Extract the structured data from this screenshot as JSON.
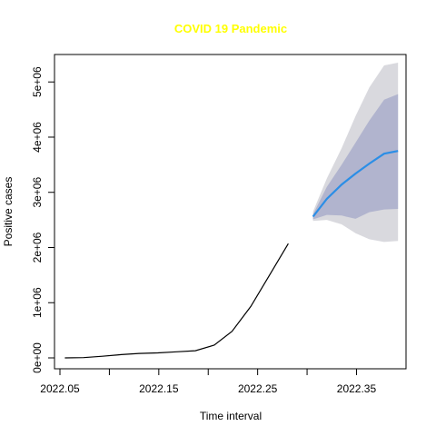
{
  "chart_data": {
    "type": "line",
    "title": "COVID 19 Pandemic",
    "title_color": "#ffff00",
    "xlabel": "Time interval",
    "ylabel": "Positive cases",
    "xlim": [
      2022.05,
      2022.39
    ],
    "ylim": [
      0,
      5300000
    ],
    "x_ticks": [
      {
        "value": 2022.05,
        "label": "2022.05"
      },
      {
        "value": 2022.1,
        "label": ""
      },
      {
        "value": 2022.15,
        "label": "2022.15"
      },
      {
        "value": 2022.2,
        "label": ""
      },
      {
        "value": 2022.25,
        "label": "2022.25"
      },
      {
        "value": 2022.3,
        "label": ""
      },
      {
        "value": 2022.35,
        "label": "2022.35"
      }
    ],
    "y_ticks": [
      {
        "value": 0,
        "label": "0e+00"
      },
      {
        "value": 1000000,
        "label": "1e+06"
      },
      {
        "value": 2000000,
        "label": "2e+06"
      },
      {
        "value": 3000000,
        "label": "3e+06"
      },
      {
        "value": 4000000,
        "label": "4e+06"
      },
      {
        "value": 5000000,
        "label": "5e+06"
      }
    ],
    "observed": {
      "color": "#000000",
      "x": [
        2022.055,
        2022.074,
        2022.093,
        2022.112,
        2022.13,
        2022.149,
        2022.168,
        2022.187,
        2022.206,
        2022.224,
        2022.243,
        2022.262,
        2022.281
      ],
      "y": [
        0,
        5000,
        30000,
        60000,
        80000,
        90000,
        110000,
        130000,
        230000,
        480000,
        930000,
        1500000,
        2070000
      ]
    },
    "forecast": {
      "mean_color": "#2b8ee6",
      "band80_color": "#b1b4ce",
      "band95_color": "#d9d9de",
      "x": [
        2022.306,
        2022.32,
        2022.335,
        2022.349,
        2022.363,
        2022.378,
        2022.392
      ],
      "mean": [
        2560000,
        2880000,
        3140000,
        3340000,
        3520000,
        3700000,
        3750000
      ],
      "lo80": [
        2510000,
        2590000,
        2580000,
        2520000,
        2640000,
        2690000,
        2700000
      ],
      "hi80": [
        2600000,
        3100000,
        3500000,
        3900000,
        4300000,
        4680000,
        4780000
      ],
      "lo95": [
        2480000,
        2500000,
        2420000,
        2260000,
        2150000,
        2100000,
        2120000
      ],
      "hi95": [
        2650000,
        3250000,
        3800000,
        4380000,
        4900000,
        5300000,
        5350000
      ]
    }
  }
}
